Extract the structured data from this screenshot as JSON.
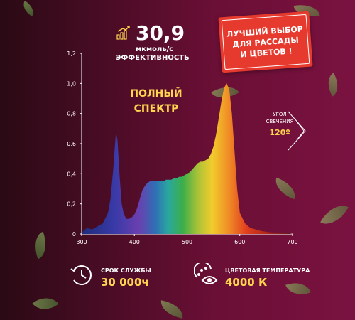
{
  "efficiency": {
    "value": "30,9",
    "unit": "мкмоль/с",
    "label": "ЭФФЕКТИВНОСТЬ"
  },
  "badge": {
    "lines": [
      "ЛУЧШИЙ ВЫБОР",
      "ДЛЯ РАССАДЫ",
      "И ЦВЕТОВ !"
    ]
  },
  "beam_angle": {
    "line1": "УГОЛ",
    "line2": "СВЕЧЕНИЯ",
    "value": "120º"
  },
  "features": [
    {
      "label": "СРОК СЛУЖБЫ",
      "value": "30 000ч",
      "icon": "clock-icon"
    },
    {
      "label": "ЦВЕТОВАЯ ТЕМПЕРАТУРА",
      "value": "4000 К",
      "icon": "palette-eye-icon"
    }
  ],
  "colors": {
    "accent": "#ffd54f",
    "badge": "#e63a2e"
  },
  "chart_data": {
    "type": "area",
    "title": "ПОЛНЫЙ СПЕКТР",
    "xlabel": "",
    "ylabel": "",
    "xlim": [
      300,
      700
    ],
    "ylim": [
      0,
      1.2
    ],
    "xticks": [
      "300",
      "400",
      "500",
      "600",
      "700"
    ],
    "yticks": [
      "0",
      "0,2",
      "0,4",
      "0,6",
      "0,8",
      "1,0",
      "1,2"
    ],
    "grid": false,
    "x": [
      300,
      310,
      320,
      330,
      340,
      350,
      355,
      360,
      365,
      368,
      372,
      376,
      380,
      385,
      390,
      395,
      400,
      405,
      410,
      415,
      420,
      425,
      430,
      435,
      440,
      445,
      450,
      455,
      460,
      465,
      470,
      475,
      480,
      485,
      490,
      495,
      500,
      505,
      510,
      515,
      520,
      525,
      530,
      535,
      540,
      545,
      550,
      555,
      560,
      565,
      570,
      575,
      580,
      585,
      590,
      595,
      600,
      610,
      620,
      640,
      660,
      680,
      700
    ],
    "values": [
      0.01,
      0.04,
      0.03,
      0.05,
      0.07,
      0.14,
      0.24,
      0.44,
      0.68,
      0.62,
      0.38,
      0.2,
      0.13,
      0.1,
      0.1,
      0.11,
      0.13,
      0.17,
      0.23,
      0.29,
      0.32,
      0.34,
      0.35,
      0.35,
      0.35,
      0.35,
      0.35,
      0.35,
      0.36,
      0.36,
      0.36,
      0.37,
      0.37,
      0.38,
      0.38,
      0.39,
      0.4,
      0.41,
      0.43,
      0.45,
      0.47,
      0.48,
      0.48,
      0.49,
      0.5,
      0.53,
      0.58,
      0.66,
      0.77,
      0.88,
      0.97,
      1.0,
      0.96,
      0.8,
      0.55,
      0.3,
      0.14,
      0.07,
      0.04,
      0.02,
      0.01,
      0.01,
      0.0
    ]
  }
}
